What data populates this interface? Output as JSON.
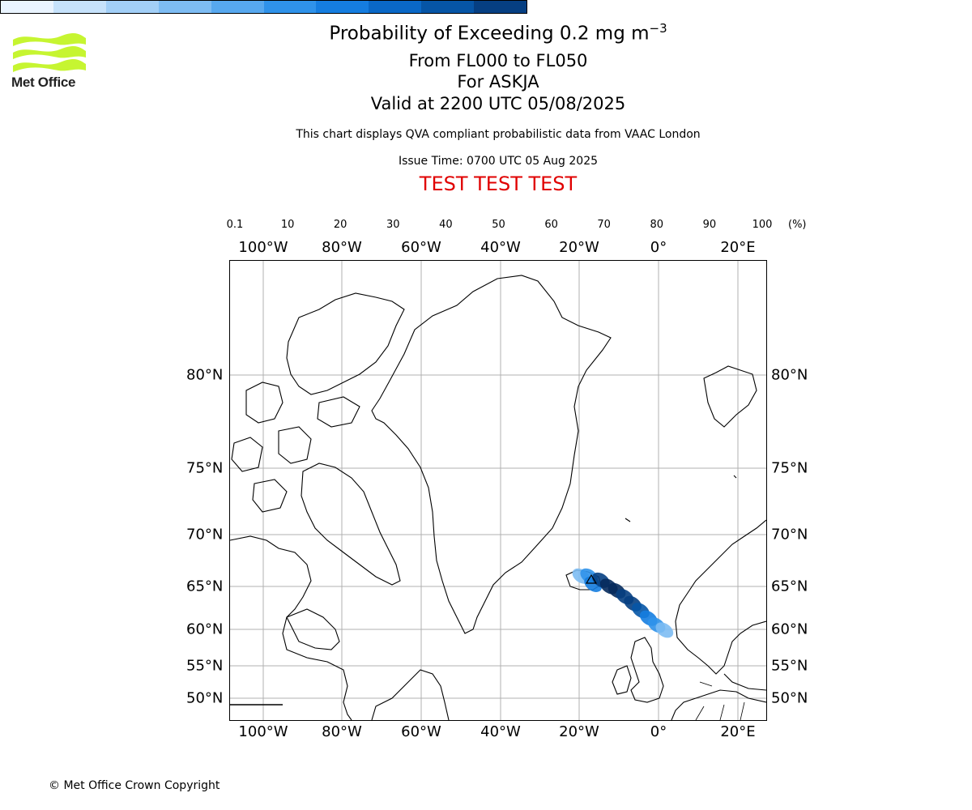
{
  "logo": {
    "text": "Met Office",
    "color": "#c6f531"
  },
  "title": {
    "line1_prefix": "Probability of Exceeding 0.2 mg m",
    "line1_sup": "−3",
    "line2": "From FL000 to FL050",
    "line3": "For ASKJA",
    "line4": "Valid at 2200 UTC 05/08/2025"
  },
  "subtitle": "This chart displays QVA compliant probabilistic data from VAAC London",
  "issue_time": "Issue Time: 0700 UTC 05 Aug 2025",
  "test_banner": {
    "text": "TEST TEST TEST",
    "color": "#e00000"
  },
  "colorbar": {
    "ticks": [
      "0.1",
      "10",
      "20",
      "30",
      "40",
      "50",
      "60",
      "70",
      "80",
      "90",
      "100"
    ],
    "unit": "(%)",
    "colors": [
      "#eaf4ff",
      "#c6e2fb",
      "#a2cff7",
      "#7dbcf3",
      "#57a8ef",
      "#2f92ea",
      "#157de0",
      "#0a68c7",
      "#0655a6",
      "#063f82",
      "#052a5c"
    ]
  },
  "map": {
    "lon_labels": [
      "100°W",
      "80°W",
      "60°W",
      "40°W",
      "20°W",
      "0°",
      "20°E"
    ],
    "lat_labels": [
      "80°N",
      "75°N",
      "70°N",
      "65°N",
      "60°N",
      "55°N",
      "50°N"
    ],
    "plume_cells": [
      {
        "lon": -19.5,
        "lat": 66.0,
        "p": 0.3
      },
      {
        "lon": -17.5,
        "lat": 66.0,
        "p": 0.5
      },
      {
        "lon": -16.5,
        "lat": 65.2,
        "p": 0.6
      },
      {
        "lon": -14.5,
        "lat": 65.6,
        "p": 0.85
      },
      {
        "lon": -12.5,
        "lat": 65.0,
        "p": 0.95
      },
      {
        "lon": -10.5,
        "lat": 64.5,
        "p": 0.95
      },
      {
        "lon": -8.5,
        "lat": 63.8,
        "p": 0.9
      },
      {
        "lon": -6.5,
        "lat": 63.0,
        "p": 0.85
      },
      {
        "lon": -4.5,
        "lat": 62.2,
        "p": 0.75
      },
      {
        "lon": -2.5,
        "lat": 61.3,
        "p": 0.6
      },
      {
        "lon": -0.5,
        "lat": 60.5,
        "p": 0.45
      },
      {
        "lon": 1.5,
        "lat": 59.9,
        "p": 0.3
      }
    ]
  },
  "copyright": "© Met Office Crown Copyright"
}
